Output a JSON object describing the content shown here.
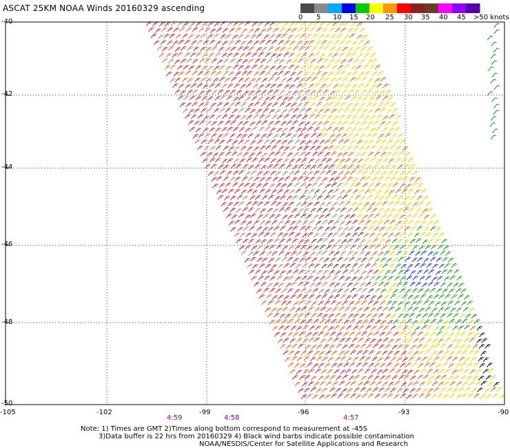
{
  "title": "ASCAT 25KM NOAA Winds 20160329 ascending",
  "legend": {
    "labels": [
      "0",
      "5",
      "10",
      "15",
      "20",
      "25",
      "30",
      "35",
      "40",
      "45",
      ">50 knots"
    ],
    "colors": [
      "#4a4a4a",
      "#8a8a8a",
      "#00aaff",
      "#0000ee",
      "#00cc00",
      "#ffff00",
      "#ff9900",
      "#ff0000",
      "#8b2020",
      "#6b3a2a",
      "#ff00ff",
      "#8b00ff",
      "#5500aa"
    ]
  },
  "lat_labels": [
    "-40",
    "-42",
    "-44",
    "-46",
    "-48",
    "-50"
  ],
  "lon_labels": [
    "-105",
    "-102",
    "-99",
    "-96",
    "-93",
    "-90"
  ],
  "time_labels": [
    "4:59",
    "4:58",
    "4:57"
  ],
  "notes": {
    "line1": "Note: 1) Times are GMT 2)Times along bottom correspond to measurement at -45S",
    "line2": "3)Data buffer is 22 hrs from 20160329 4) Black wind barbs indicate possible contamination",
    "line3": "NOAA/NESDIS/Center for Satellite Applications and Research"
  },
  "map": {
    "swath_colors": {
      "west": "#cc2233",
      "tan": "#a88a6a",
      "brown": "#5a3028",
      "orange": "#e06a1a",
      "yellow": "#e8d800",
      "green": "#1a9a1a",
      "blue": "#1a30dd",
      "black": "#000000"
    }
  }
}
